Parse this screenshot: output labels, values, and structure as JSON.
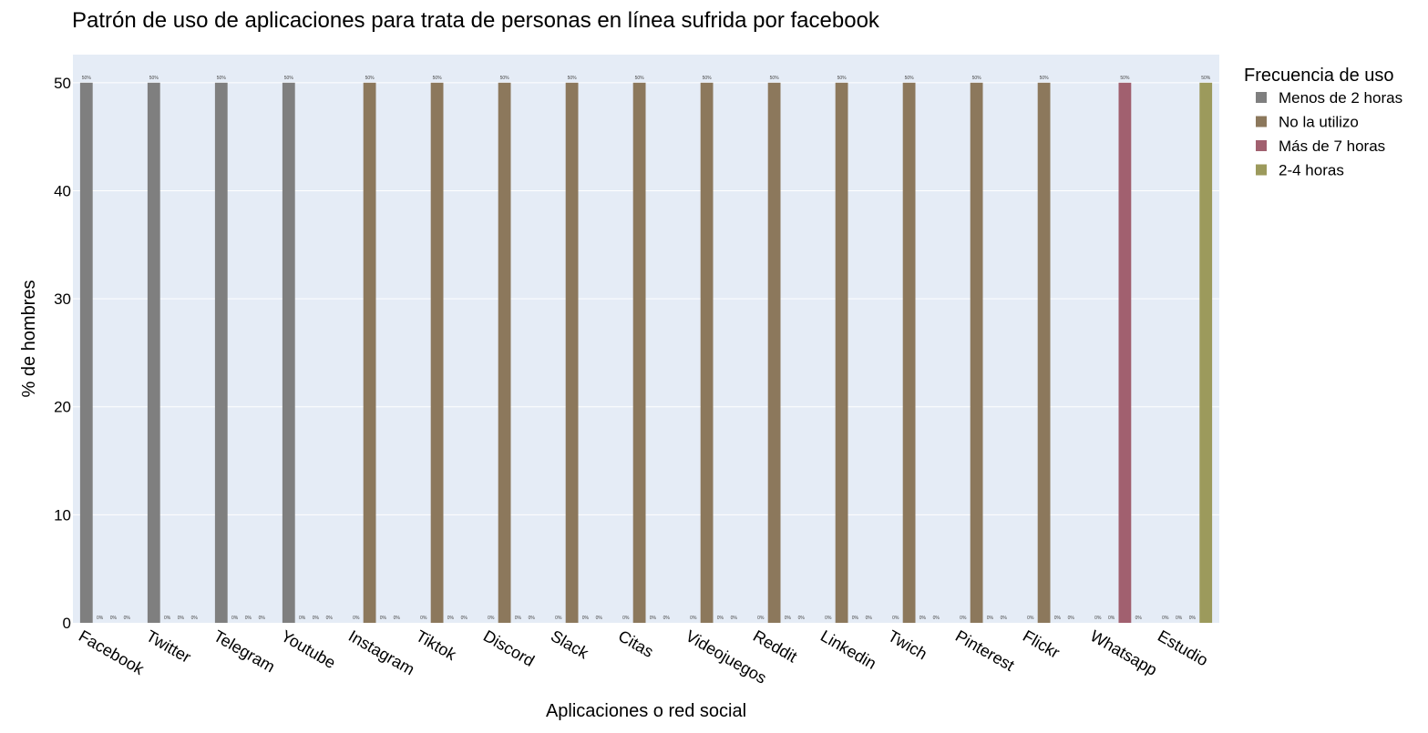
{
  "chart_data": {
    "type": "bar",
    "title": "Patrón de uso de aplicaciones para trata de personas en línea sufrida por facebook",
    "xlabel": "Aplicaciones o red social",
    "ylabel": "% de hombres",
    "ylim": [
      0,
      52.6
    ],
    "yticks": [
      0,
      10,
      20,
      30,
      40,
      50
    ],
    "grid": true,
    "legend_title": "Frecuencia de uso",
    "legend_position": "top-right",
    "categories": [
      "Facebook",
      "Twitter",
      "Telegram",
      "Youtube",
      "Instagram",
      "Tiktok",
      "Discord",
      "Slack",
      "Citas",
      "Videojuegos",
      "Reddit",
      "Linkedin",
      "Twich",
      "Pinterest",
      "Flickr",
      "Whatsapp",
      "Estudio"
    ],
    "series": [
      {
        "name": "Menos de 2 horas",
        "color": "#7f7f7f",
        "values": [
          50,
          50,
          50,
          50,
          0,
          0,
          0,
          0,
          0,
          0,
          0,
          0,
          0,
          0,
          0,
          0,
          0
        ]
      },
      {
        "name": "No la utilizo",
        "color": "#8c785c",
        "values": [
          0,
          0,
          0,
          0,
          50,
          50,
          50,
          50,
          50,
          50,
          50,
          50,
          50,
          50,
          50,
          0,
          0
        ]
      },
      {
        "name": "Más de 7 horas",
        "color": "#a1606f",
        "values": [
          0,
          0,
          0,
          0,
          0,
          0,
          0,
          0,
          0,
          0,
          0,
          0,
          0,
          0,
          0,
          50,
          0
        ]
      },
      {
        "name": "2-4 horas",
        "color": "#9c9a5c",
        "values": [
          0,
          0,
          0,
          0,
          0,
          0,
          0,
          0,
          0,
          0,
          0,
          0,
          0,
          0,
          0,
          0,
          50
        ]
      }
    ],
    "data_labels": [
      [
        "50%",
        "0%",
        "0%",
        "0%"
      ],
      [
        "50%",
        "0%",
        "0%",
        "0%"
      ],
      [
        "50%",
        "0%",
        "0%",
        "0%"
      ],
      [
        "50%",
        "0%",
        "0%",
        "0%"
      ],
      [
        "0%",
        "50%",
        "0%",
        "0%"
      ],
      [
        "0%",
        "50%",
        "0%",
        "0%"
      ],
      [
        "0%",
        "50%",
        "0%",
        "0%"
      ],
      [
        "0%",
        "50%",
        "0%",
        "0%"
      ],
      [
        "0%",
        "50%",
        "0%",
        "0%"
      ],
      [
        "0%",
        "50%",
        "0%",
        "0%"
      ],
      [
        "0%",
        "50%",
        "0%",
        "0%"
      ],
      [
        "0%",
        "50%",
        "0%",
        "0%"
      ],
      [
        "0%",
        "50%",
        "0%",
        "0%"
      ],
      [
        "0%",
        "50%",
        "0%",
        "0%"
      ],
      [
        "0%",
        "50%",
        "0%",
        "0%"
      ],
      [
        "0%",
        "0%",
        "50%",
        "0%"
      ],
      [
        "0%",
        "0%",
        "0%",
        "50%"
      ]
    ],
    "plot_background": "#e5ecf6"
  }
}
